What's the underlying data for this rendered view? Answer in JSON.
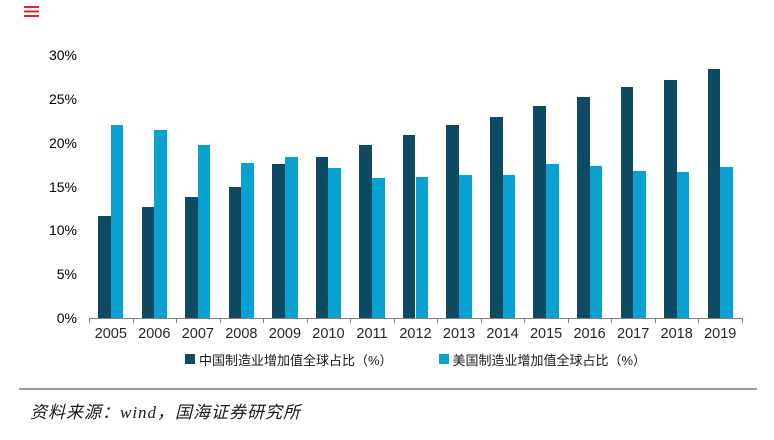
{
  "page": {
    "background": "#ffffff"
  },
  "decoration": {
    "red_mark_color": "#e8202a"
  },
  "chart_data": {
    "type": "bar",
    "categories": [
      "2005",
      "2006",
      "2007",
      "2008",
      "2009",
      "2010",
      "2011",
      "2012",
      "2013",
      "2014",
      "2015",
      "2016",
      "2017",
      "2018",
      "2019"
    ],
    "series": [
      {
        "name": "中国制造业增加值全球占比（%）",
        "color": "#0e4a64",
        "values": [
          11.6,
          12.7,
          13.8,
          15.0,
          17.6,
          18.4,
          19.7,
          20.9,
          22.0,
          22.9,
          24.2,
          25.2,
          26.4,
          27.2,
          28.4
        ]
      },
      {
        "name": "美国制造业增加值全球占比（%）",
        "color": "#09a0d2",
        "values": [
          22.0,
          21.5,
          19.7,
          17.7,
          18.4,
          17.1,
          16.0,
          16.1,
          16.3,
          16.3,
          17.6,
          17.3,
          16.8,
          16.6,
          17.2
        ]
      }
    ],
    "title": "",
    "xlabel": "",
    "ylabel": "",
    "ylim": [
      0,
      30
    ],
    "ytick_step": 5,
    "ytick_labels": [
      "0%",
      "5%",
      "10%",
      "15%",
      "20%",
      "25%",
      "30%"
    ],
    "grid": false,
    "legend_position": "bottom",
    "axis_color": "#808080"
  },
  "footer": {
    "source_text": "资料来源：wind，国海证券研究所"
  }
}
